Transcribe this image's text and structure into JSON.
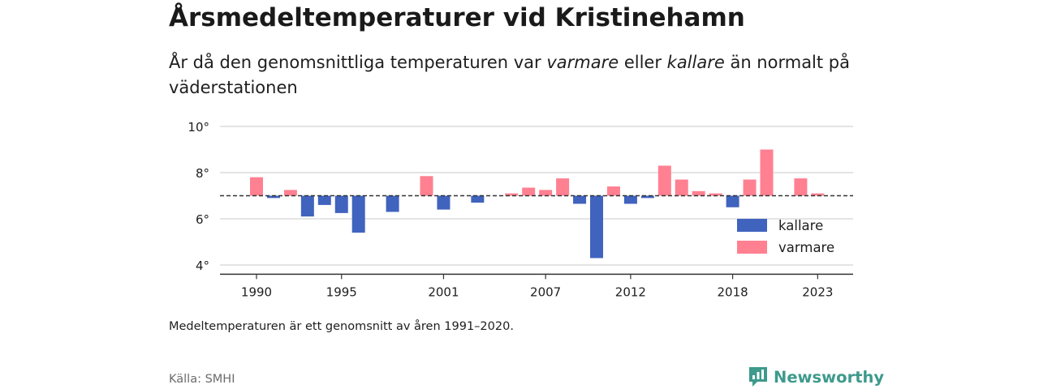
{
  "title": "Årsmedeltemperaturer vid Kristinehamn",
  "subtitle": {
    "part1": "År då den genomsnittliga temperaturen var ",
    "em1": "varmare",
    "part2": " eller ",
    "em2": "kallare",
    "part3": " än normalt på väderstationen"
  },
  "note": "Medeltemperaturen är ett genomsnitt av åren 1991–2020.",
  "source": "Källa: SMHI",
  "brand": "Newsworthy",
  "colors": {
    "kallare": "#4063be",
    "varmare": "#ff8091",
    "brand": "#3d9a8c"
  },
  "chart_data": {
    "type": "bar",
    "baseline": 7.0,
    "ylim": [
      3.6,
      10.0
    ],
    "y_ticks": [
      4,
      6,
      8,
      10
    ],
    "y_tick_labels": [
      "4°",
      "6°",
      "8°",
      "10°"
    ],
    "x_ticks": [
      1990,
      1995,
      2001,
      2007,
      2012,
      2018,
      2023
    ],
    "x_tick_labels": [
      "1990",
      "1995",
      "2001",
      "2007",
      "2012",
      "2018",
      "2023"
    ],
    "legend": [
      {
        "key": "kallare",
        "label": "kallare"
      },
      {
        "key": "varmare",
        "label": "varmare"
      }
    ],
    "legend_position": "bottom-right",
    "grid": true,
    "years": [
      1990,
      1991,
      1992,
      1993,
      1994,
      1995,
      1996,
      1997,
      1998,
      1999,
      2000,
      2001,
      2002,
      2003,
      2004,
      2005,
      2006,
      2007,
      2008,
      2009,
      2010,
      2011,
      2012,
      2013,
      2014,
      2015,
      2016,
      2017,
      2018,
      2019,
      2020,
      2021,
      2022,
      2023
    ],
    "values": [
      7.8,
      6.9,
      7.25,
      6.1,
      6.6,
      6.25,
      5.4,
      7.0,
      6.3,
      7.0,
      7.85,
      6.4,
      7.0,
      6.7,
      7.0,
      7.1,
      7.35,
      7.25,
      7.75,
      6.65,
      4.3,
      7.4,
      6.65,
      6.9,
      8.3,
      7.7,
      7.2,
      7.1,
      6.5,
      7.7,
      9.0,
      7.0,
      7.75,
      7.1
    ]
  }
}
